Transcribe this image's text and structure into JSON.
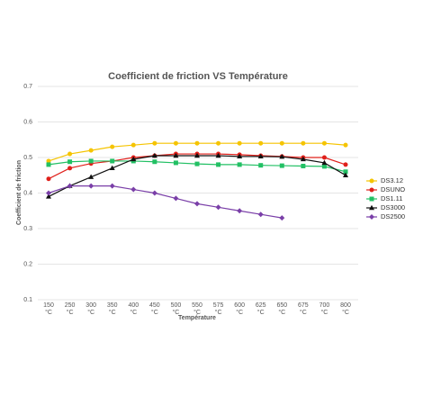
{
  "chart_data": {
    "type": "line",
    "title": "Coefficient de friction VS Température",
    "x_label": "Température",
    "y_label": "Coefficient de friction",
    "categories": [
      "150 °C",
      "250 °C",
      "300 °C",
      "350 °C",
      "400 °C",
      "450 °C",
      "500 °C",
      "550 °C",
      "575 °C",
      "600 °C",
      "625 °C",
      "650 °C",
      "675 °C",
      "700 °C",
      "800 °C"
    ],
    "ylim": [
      0.1,
      0.7
    ],
    "yticks": [
      0.1,
      0.2,
      0.3,
      0.4,
      0.5,
      0.6,
      0.7
    ],
    "grid": true,
    "legend": "right",
    "series": [
      {
        "name": "DS3.12",
        "color": "#f5c400",
        "marker": "circle",
        "values": [
          0.49,
          0.51,
          0.52,
          0.53,
          0.535,
          0.54,
          0.54,
          0.54,
          0.54,
          0.54,
          0.54,
          0.54,
          0.54,
          0.54,
          0.535
        ]
      },
      {
        "name": "DSUNO",
        "color": "#e0201b",
        "marker": "circle",
        "values": [
          0.44,
          0.47,
          0.483,
          0.49,
          0.5,
          0.505,
          0.51,
          0.51,
          0.51,
          0.508,
          0.505,
          0.503,
          0.5,
          0.5,
          0.48
        ]
      },
      {
        "name": "DS1.11",
        "color": "#22c064",
        "marker": "square",
        "values": [
          0.48,
          0.488,
          0.49,
          0.49,
          0.49,
          0.488,
          0.485,
          0.482,
          0.48,
          0.48,
          0.478,
          0.477,
          0.476,
          0.475,
          0.46
        ]
      },
      {
        "name": "DS3000",
        "color": "#111111",
        "marker": "triangle",
        "values": [
          0.39,
          0.42,
          0.445,
          0.47,
          0.495,
          0.505,
          0.505,
          0.505,
          0.505,
          0.503,
          0.503,
          0.502,
          0.495,
          0.485,
          0.45
        ]
      },
      {
        "name": "DS2500",
        "color": "#7a3fa8",
        "marker": "diamond",
        "values": [
          0.4,
          0.42,
          0.42,
          0.42,
          0.41,
          0.4,
          0.385,
          0.37,
          0.36,
          0.35,
          0.34,
          0.33,
          null,
          null,
          null
        ]
      }
    ]
  }
}
